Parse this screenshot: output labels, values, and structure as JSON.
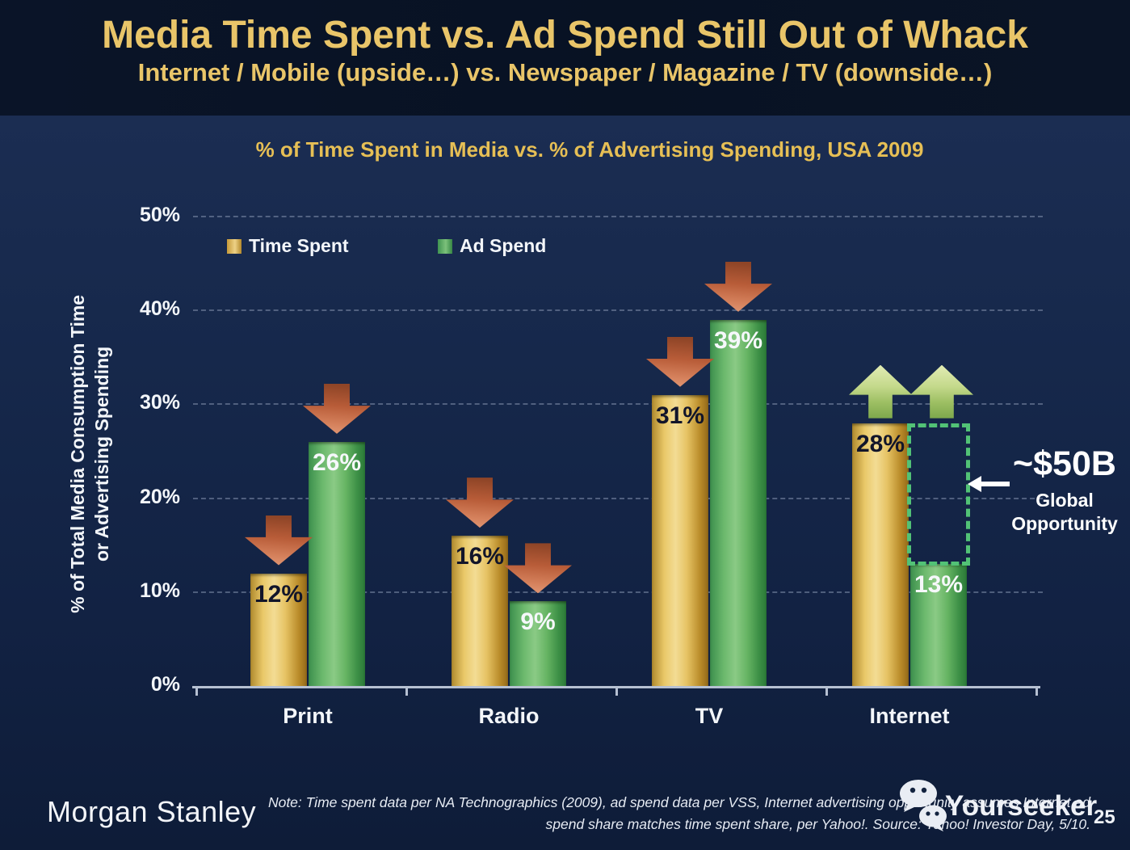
{
  "slide": {
    "title": "Media Time Spent vs. Ad Spend Still Out of Whack",
    "subtitle": "Internet / Mobile (upside…) vs. Newspaper / Magazine / TV (downside…)",
    "logo": "Morgan Stanley",
    "watermark": "Yourseeker",
    "note_line1": "Note: Time spent data per NA Technographics (2009), ad spend data per VSS, Internet advertising opportunity assumes Internet ad",
    "note_line2": "spend share matches time spent share, per Yahoo!. Source: Yahoo! Investor Day, 5/10.",
    "page_number": "25"
  },
  "chart_data": {
    "type": "bar",
    "title": "% of Time Spent in Media vs. % of Advertising Spending, USA 2009",
    "categories": [
      "Print",
      "Radio",
      "TV",
      "Internet"
    ],
    "series": [
      {
        "name": "Time Spent",
        "color": "#ddb258",
        "values": [
          12,
          16,
          31,
          28
        ],
        "labels": [
          "12%",
          "16%",
          "31%",
          "28%"
        ]
      },
      {
        "name": "Ad Spend",
        "color": "#58ae62",
        "values": [
          26,
          9,
          39,
          13
        ],
        "labels": [
          "26%",
          "9%",
          "39%",
          "13%"
        ]
      }
    ],
    "ylabel_line1": "% of Total Media Consumption Time",
    "ylabel_line2": "or Advertising Spending",
    "yticks": [
      "50%",
      "40%",
      "30%",
      "20%",
      "10%",
      "0%"
    ],
    "ylim": [
      0,
      50
    ],
    "grid": "dashed horizontal gridlines at 10% steps",
    "legend_position": "top-left inside plot",
    "trend_arrows": {
      "print": "down",
      "radio": "down",
      "tv": "down",
      "internet": "up"
    },
    "annotation": {
      "value": "~$50B",
      "label_line1": "Global",
      "label_line2": "Opportunity"
    },
    "colors": {
      "time_spent_bar": "#ddb258",
      "ad_spend_bar": "#58ae62",
      "down_arrow": "#c06a44",
      "up_arrow": "#b5d080",
      "opportunity_box": "#52c276",
      "title_gold": "#e9c569",
      "background_navy": "#16284b"
    }
  }
}
